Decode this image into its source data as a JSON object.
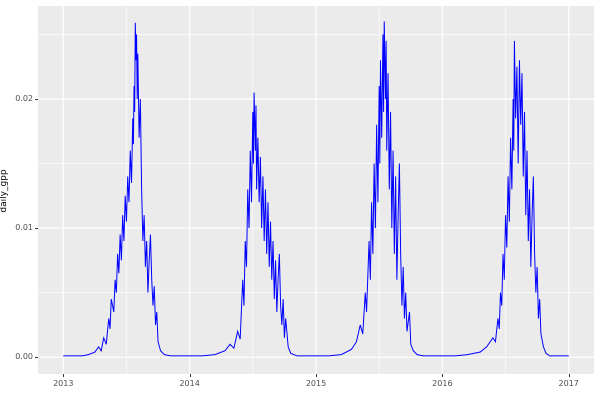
{
  "chart_data": {
    "type": "line",
    "title": "",
    "xlabel": "",
    "ylabel": "daily_gpp",
    "legend": "none",
    "grid": "on",
    "line_color": "#0000FF",
    "panel_bg": "#EBEBEB",
    "grid_major_color": "#FFFFFF",
    "grid_minor_color": "#FFFFFF",
    "tick_text_color": "#4D4D4D",
    "xlim": [
      2012.8,
      2017.2
    ],
    "ylim": [
      -0.0013,
      0.0272
    ],
    "x_major_ticks": [
      2013,
      2014,
      2015,
      2016,
      2017
    ],
    "x_tick_labels": [
      "2013",
      "2014",
      "2015",
      "2016",
      "2017"
    ],
    "x_minor_ticks": [
      2013.5,
      2014.5,
      2015.5,
      2016.5
    ],
    "y_major_ticks": [
      0.0,
      0.01,
      0.02
    ],
    "y_tick_labels": [
      "0.00",
      "0.01",
      "0.02"
    ],
    "y_minor_ticks": [
      0.005,
      0.015,
      0.025
    ],
    "points": [
      [
        2013.0,
        0.0001
      ],
      [
        2013.05,
        0.0001
      ],
      [
        2013.1,
        0.0001
      ],
      [
        2013.15,
        0.0001
      ],
      [
        2013.2,
        0.0002
      ],
      [
        2013.25,
        0.0004
      ],
      [
        2013.28,
        0.0008
      ],
      [
        2013.3,
        0.0005
      ],
      [
        2013.32,
        0.0015
      ],
      [
        2013.34,
        0.001
      ],
      [
        2013.36,
        0.003
      ],
      [
        2013.37,
        0.0022
      ],
      [
        2013.38,
        0.0045
      ],
      [
        2013.4,
        0.0035
      ],
      [
        2013.41,
        0.006
      ],
      [
        2013.42,
        0.005
      ],
      [
        2013.43,
        0.008
      ],
      [
        2013.44,
        0.0065
      ],
      [
        2013.45,
        0.0095
      ],
      [
        2013.46,
        0.0075
      ],
      [
        2013.47,
        0.011
      ],
      [
        2013.48,
        0.009
      ],
      [
        2013.49,
        0.0125
      ],
      [
        2013.5,
        0.0105
      ],
      [
        2013.51,
        0.014
      ],
      [
        2013.52,
        0.012
      ],
      [
        2013.53,
        0.016
      ],
      [
        2013.54,
        0.0135
      ],
      [
        2013.55,
        0.0185
      ],
      [
        2013.555,
        0.0165
      ],
      [
        2013.56,
        0.021
      ],
      [
        2013.565,
        0.019
      ],
      [
        2013.57,
        0.0259
      ],
      [
        2013.575,
        0.023
      ],
      [
        2013.58,
        0.025
      ],
      [
        2013.585,
        0.02
      ],
      [
        2013.59,
        0.0235
      ],
      [
        2013.6,
        0.017
      ],
      [
        2013.61,
        0.02
      ],
      [
        2013.62,
        0.013
      ],
      [
        2013.63,
        0.009
      ],
      [
        2013.64,
        0.011
      ],
      [
        2013.65,
        0.007
      ],
      [
        2013.66,
        0.009
      ],
      [
        2013.67,
        0.005
      ],
      [
        2013.68,
        0.0075
      ],
      [
        2013.69,
        0.0095
      ],
      [
        2013.7,
        0.006
      ],
      [
        2013.71,
        0.004
      ],
      [
        2013.72,
        0.0055
      ],
      [
        2013.73,
        0.0025
      ],
      [
        2013.74,
        0.0035
      ],
      [
        2013.75,
        0.0012
      ],
      [
        2013.77,
        0.0005
      ],
      [
        2013.8,
        0.0002
      ],
      [
        2013.85,
        0.0001
      ],
      [
        2013.9,
        0.0001
      ],
      [
        2013.95,
        0.0001
      ],
      [
        2014.0,
        0.0001
      ],
      [
        2014.1,
        0.0001
      ],
      [
        2014.2,
        0.0002
      ],
      [
        2014.28,
        0.0005
      ],
      [
        2014.32,
        0.001
      ],
      [
        2014.35,
        0.0007
      ],
      [
        2014.38,
        0.002
      ],
      [
        2014.4,
        0.0014
      ],
      [
        2014.42,
        0.006
      ],
      [
        2014.43,
        0.004
      ],
      [
        2014.44,
        0.009
      ],
      [
        2014.45,
        0.007
      ],
      [
        2014.46,
        0.013
      ],
      [
        2014.47,
        0.01
      ],
      [
        2014.48,
        0.016
      ],
      [
        2014.49,
        0.012
      ],
      [
        2014.5,
        0.019
      ],
      [
        2014.505,
        0.015
      ],
      [
        2014.51,
        0.0205
      ],
      [
        2014.52,
        0.016
      ],
      [
        2014.525,
        0.0195
      ],
      [
        2014.53,
        0.013
      ],
      [
        2014.54,
        0.017
      ],
      [
        2014.55,
        0.012
      ],
      [
        2014.56,
        0.0155
      ],
      [
        2014.57,
        0.01
      ],
      [
        2014.58,
        0.014
      ],
      [
        2014.59,
        0.009
      ],
      [
        2014.6,
        0.013
      ],
      [
        2014.61,
        0.008
      ],
      [
        2014.62,
        0.012
      ],
      [
        2014.63,
        0.007
      ],
      [
        2014.64,
        0.0105
      ],
      [
        2014.65,
        0.006
      ],
      [
        2014.66,
        0.009
      ],
      [
        2014.67,
        0.0045
      ],
      [
        2014.68,
        0.0075
      ],
      [
        2014.69,
        0.0035
      ],
      [
        2014.7,
        0.006
      ],
      [
        2014.71,
        0.008
      ],
      [
        2014.72,
        0.004
      ],
      [
        2014.73,
        0.0025
      ],
      [
        2014.74,
        0.0045
      ],
      [
        2014.75,
        0.0015
      ],
      [
        2014.76,
        0.003
      ],
      [
        2014.78,
        0.0008
      ],
      [
        2014.8,
        0.0003
      ],
      [
        2014.85,
        0.0001
      ],
      [
        2014.9,
        0.0001
      ],
      [
        2015.0,
        0.0001
      ],
      [
        2015.1,
        0.0001
      ],
      [
        2015.2,
        0.0002
      ],
      [
        2015.28,
        0.0006
      ],
      [
        2015.32,
        0.0012
      ],
      [
        2015.35,
        0.0025
      ],
      [
        2015.37,
        0.0018
      ],
      [
        2015.39,
        0.005
      ],
      [
        2015.4,
        0.0035
      ],
      [
        2015.42,
        0.009
      ],
      [
        2015.43,
        0.006
      ],
      [
        2015.44,
        0.012
      ],
      [
        2015.45,
        0.008
      ],
      [
        2015.46,
        0.015
      ],
      [
        2015.47,
        0.01
      ],
      [
        2015.48,
        0.018
      ],
      [
        2015.49,
        0.012
      ],
      [
        2015.5,
        0.021
      ],
      [
        2015.505,
        0.015
      ],
      [
        2015.51,
        0.023
      ],
      [
        2015.52,
        0.017
      ],
      [
        2015.53,
        0.025
      ],
      [
        2015.535,
        0.019
      ],
      [
        2015.54,
        0.026
      ],
      [
        2015.55,
        0.02
      ],
      [
        2015.555,
        0.0245
      ],
      [
        2015.56,
        0.016
      ],
      [
        2015.57,
        0.022
      ],
      [
        2015.58,
        0.013
      ],
      [
        2015.59,
        0.019
      ],
      [
        2015.6,
        0.01
      ],
      [
        2015.61,
        0.016
      ],
      [
        2015.62,
        0.008
      ],
      [
        2015.63,
        0.014
      ],
      [
        2015.64,
        0.006
      ],
      [
        2015.65,
        0.011
      ],
      [
        2015.66,
        0.015
      ],
      [
        2015.67,
        0.008
      ],
      [
        2015.68,
        0.004
      ],
      [
        2015.69,
        0.007
      ],
      [
        2015.7,
        0.003
      ],
      [
        2015.71,
        0.005
      ],
      [
        2015.72,
        0.002
      ],
      [
        2015.74,
        0.0035
      ],
      [
        2015.75,
        0.001
      ],
      [
        2015.77,
        0.0005
      ],
      [
        2015.8,
        0.0002
      ],
      [
        2015.85,
        0.0001
      ],
      [
        2015.9,
        0.0001
      ],
      [
        2016.0,
        0.0001
      ],
      [
        2016.1,
        0.0001
      ],
      [
        2016.2,
        0.0002
      ],
      [
        2016.3,
        0.0004
      ],
      [
        2016.35,
        0.0008
      ],
      [
        2016.4,
        0.0015
      ],
      [
        2016.42,
        0.0012
      ],
      [
        2016.44,
        0.003
      ],
      [
        2016.45,
        0.0022
      ],
      [
        2016.46,
        0.005
      ],
      [
        2016.47,
        0.004
      ],
      [
        2016.48,
        0.008
      ],
      [
        2016.49,
        0.006
      ],
      [
        2016.5,
        0.011
      ],
      [
        2016.51,
        0.0085
      ],
      [
        2016.52,
        0.014
      ],
      [
        2016.53,
        0.0105
      ],
      [
        2016.54,
        0.017
      ],
      [
        2016.55,
        0.013
      ],
      [
        2016.56,
        0.02
      ],
      [
        2016.565,
        0.016
      ],
      [
        2016.57,
        0.0245
      ],
      [
        2016.58,
        0.0185
      ],
      [
        2016.59,
        0.0225
      ],
      [
        2016.6,
        0.015
      ],
      [
        2016.61,
        0.023
      ],
      [
        2016.62,
        0.018
      ],
      [
        2016.63,
        0.022
      ],
      [
        2016.64,
        0.014
      ],
      [
        2016.65,
        0.019
      ],
      [
        2016.66,
        0.011
      ],
      [
        2016.67,
        0.016
      ],
      [
        2016.68,
        0.009
      ],
      [
        2016.69,
        0.013
      ],
      [
        2016.7,
        0.007
      ],
      [
        2016.71,
        0.011
      ],
      [
        2016.72,
        0.014
      ],
      [
        2016.73,
        0.008
      ],
      [
        2016.74,
        0.005
      ],
      [
        2016.75,
        0.007
      ],
      [
        2016.76,
        0.003
      ],
      [
        2016.77,
        0.0045
      ],
      [
        2016.78,
        0.0018
      ],
      [
        2016.8,
        0.0008
      ],
      [
        2016.82,
        0.0003
      ],
      [
        2016.85,
        0.0001
      ],
      [
        2016.9,
        0.0001
      ],
      [
        2016.95,
        0.0001
      ],
      [
        2017.0,
        0.0001
      ]
    ]
  }
}
